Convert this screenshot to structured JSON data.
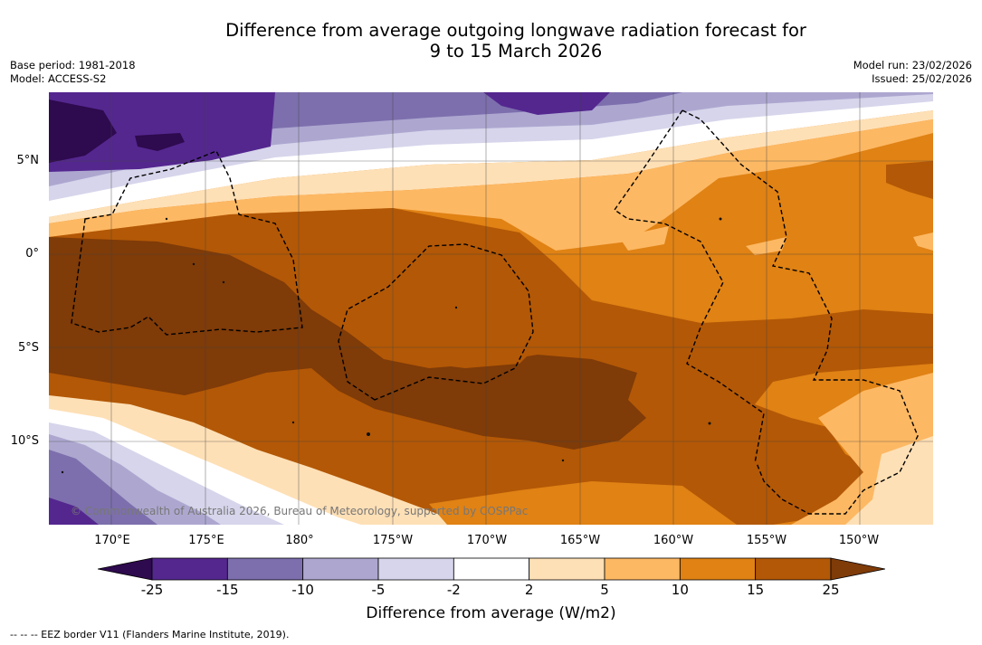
{
  "title": {
    "line1": "Difference from average outgoing longwave radiation forecast for",
    "line2": "9 to 15 March 2026"
  },
  "meta_left": {
    "base_period": "Base period: 1981-2018",
    "model": "Model: ACCESS-S2"
  },
  "meta_right": {
    "model_run": "Model run: 23/02/2026",
    "issued": "Issued: 25/02/2026"
  },
  "map": {
    "lat_labels": [
      "5°N",
      "0°",
      "5°S",
      "10°S"
    ],
    "lon_labels": [
      "170°E",
      "175°E",
      "180°",
      "175°W",
      "170°W",
      "165°W",
      "160°W",
      "155°W",
      "150°W"
    ],
    "copyright": "© Commonwealth of Australia 2026, Bureau of Meteorology, supported by COSPPac"
  },
  "colorbar": {
    "title": "Difference from average (W/m2)",
    "ticks": [
      "-25",
      "-15",
      "-10",
      "-5",
      "-2",
      "2",
      "5",
      "10",
      "15",
      "25"
    ],
    "colors": [
      "#2e0a4e",
      "#54278f",
      "#7d6fad",
      "#ada7d0",
      "#d6d5eb",
      "#ffffff",
      "#fee0b6",
      "#fdb863",
      "#e08214",
      "#b35806",
      "#7f3b08"
    ]
  },
  "legend": {
    "eez": "-- -- -- EEZ border V11 (Flanders Marine Institute, 2019)."
  }
}
